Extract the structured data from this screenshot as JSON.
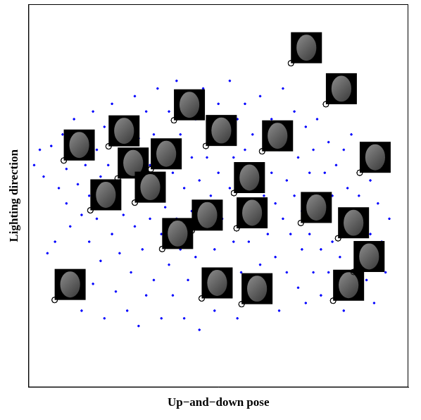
{
  "chart_data": {
    "type": "scatter",
    "x_label": "Up−and−down pose",
    "y_label": "Lighting direction",
    "xlim": [
      0,
      100
    ],
    "ylim": [
      0,
      100
    ],
    "tick_labels": false,
    "grid": false,
    "points": {
      "color": "#0000ff",
      "marker": "dot",
      "x": [
        1.5,
        3,
        4,
        6,
        5,
        7,
        8,
        9,
        10,
        10,
        11,
        12,
        12,
        13,
        13,
        14,
        14,
        15,
        15,
        16,
        16,
        17,
        17,
        18,
        18,
        19,
        19,
        20,
        20,
        20,
        21,
        22,
        22,
        23,
        23,
        24,
        24,
        25,
        25,
        26,
        26,
        27,
        27,
        28,
        28,
        29,
        29,
        30,
        30,
        31,
        31,
        32,
        32,
        33,
        33,
        34,
        34,
        35,
        35,
        36,
        36,
        37,
        37,
        38,
        38,
        39,
        39,
        40,
        40,
        41,
        41,
        42,
        42,
        43,
        43,
        44,
        44,
        45,
        45,
        46,
        46,
        47,
        47,
        48,
        48,
        49,
        49,
        50,
        50,
        51,
        51,
        52,
        52,
        53,
        53,
        54,
        54,
        55,
        55,
        56,
        56,
        57,
        57,
        58,
        58,
        59,
        59,
        60,
        60,
        61,
        61,
        62,
        62,
        63,
        63,
        64,
        64,
        65,
        65,
        66,
        66,
        67,
        67,
        68,
        68,
        69,
        69,
        70,
        70,
        71,
        71,
        72,
        72,
        73,
        73,
        74,
        74,
        75,
        75,
        76,
        76,
        77,
        77,
        78,
        78,
        79,
        79,
        80,
        80,
        81,
        81,
        82,
        82,
        83,
        83,
        84,
        84,
        85,
        85,
        86,
        86,
        87,
        88,
        88,
        89,
        89,
        90,
        90,
        91,
        91,
        92,
        93,
        94,
        95
      ],
      "y": [
        58,
        62,
        55,
        63,
        35,
        38,
        52,
        66,
        48,
        57,
        42,
        70,
        60,
        53,
        30,
        45,
        20,
        65,
        58,
        50,
        38,
        27,
        72,
        62,
        44,
        55,
        33,
        68,
        48,
        18,
        58,
        40,
        74,
        64,
        25,
        52,
        35,
        70,
        45,
        60,
        20,
        55,
        30,
        76,
        42,
        65,
        16,
        50,
        36,
        72,
        24,
        58,
        44,
        66,
        28,
        52,
        78,
        40,
        18,
        62,
        47,
        72,
        32,
        56,
        24,
        44,
        80,
        66,
        36,
        52,
        18,
        74,
        28,
        60,
        46,
        70,
        34,
        54,
        15,
        78,
        42,
        60,
        28,
        68,
        50,
        36,
        20,
        74,
        56,
        44,
        30,
        64,
        24,
        52,
        80,
        38,
        60,
        70,
        18,
        46,
        30,
        62,
        74,
        38,
        52,
        24,
        66,
        56,
        44,
        76,
        32,
        50,
        64,
        26,
        40,
        70,
        56,
        34,
        48,
        62,
        20,
        78,
        44,
        54,
        30,
        66,
        40,
        72,
        50,
        26,
        60,
        36,
        46,
        68,
        22,
        56,
        40,
        62,
        30,
        48,
        70,
        36,
        24,
        56,
        44,
        64,
        30,
        50,
        38,
        58,
        26,
        46,
        34,
        62,
        20,
        52,
        40,
        30,
        66,
        44,
        24,
        50,
        36,
        60,
        28,
        46,
        40,
        54,
        32,
        22,
        48,
        38,
        30,
        44
      ]
    },
    "highlighted": {
      "color": "#000000",
      "marker": "circle",
      "x": [
        69.1,
        78.3,
        87.2,
        38.3,
        46.7,
        61.5,
        21.1,
        9.3,
        23.5,
        32.2,
        16.3,
        28.0,
        54.1,
        54.8,
        43.0,
        35.2,
        71.7,
        81.5,
        6.9,
        45.6,
        56.1,
        80.2,
        85.6
      ],
      "y": [
        84.6,
        73.9,
        56.0,
        69.7,
        63.0,
        61.6,
        62.9,
        59.2,
        54.5,
        56.9,
        46.2,
        48.2,
        50.7,
        41.5,
        40.9,
        36.1,
        42.9,
        38.9,
        22.8,
        23.2,
        21.7,
        22.6,
        30.1
      ]
    }
  }
}
